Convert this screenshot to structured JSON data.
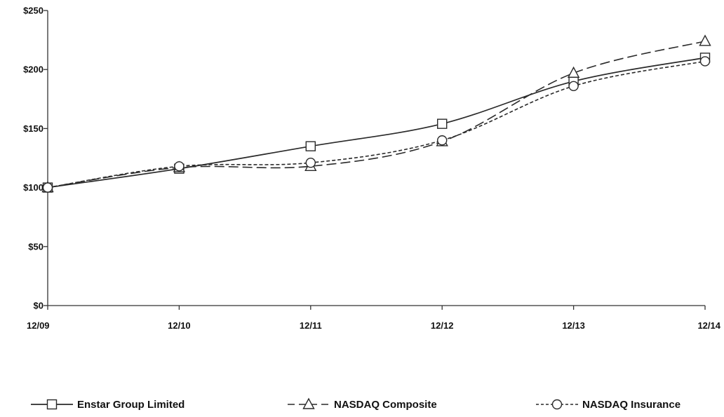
{
  "chart_data": {
    "type": "line",
    "title": "",
    "xlabel": "",
    "ylabel": "",
    "categories": [
      "12/09",
      "12/10",
      "12/11",
      "12/12",
      "12/13",
      "12/14"
    ],
    "ylim": [
      0,
      250
    ],
    "yticks": [
      0,
      50,
      100,
      150,
      200,
      250
    ],
    "ytick_labels": [
      "$0",
      "$50",
      "$100",
      "$150",
      "$200",
      "$250"
    ],
    "grid": false,
    "legend_position": "bottom",
    "series": [
      {
        "name": "Enstar Group Limited",
        "values": [
          100,
          116,
          135,
          154,
          190,
          210
        ],
        "marker": "square",
        "dash": "solid"
      },
      {
        "name": "NASDAQ Composite",
        "values": [
          100,
          117,
          118,
          139,
          197,
          224
        ],
        "marker": "triangle",
        "dash": "dashed"
      },
      {
        "name": "NASDAQ Insurance",
        "values": [
          100,
          118,
          121,
          140,
          186,
          207
        ],
        "marker": "circle",
        "dash": "dotted"
      }
    ]
  }
}
